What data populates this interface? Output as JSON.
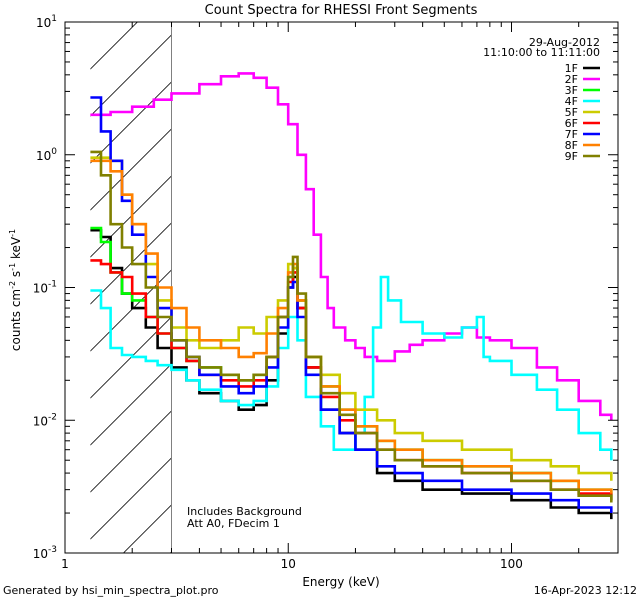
{
  "chart_data": {
    "type": "line",
    "title": "Count Spectra for RHESSI Front Segments",
    "xlabel": "Energy (keV)",
    "ylabel": "counts cm",
    "ylabel_parts": {
      "base": "counts cm",
      "exp1": "-2",
      "mid": " s",
      "exp2": "-1",
      "unit": " keV",
      "exp3": "-1"
    },
    "x_scale": "log",
    "y_scale": "log",
    "xlim": [
      1,
      300
    ],
    "ylim": [
      0.001,
      10
    ],
    "x_ticks": [
      {
        "value": 1,
        "label": "1"
      },
      {
        "value": 10,
        "label": "10"
      },
      {
        "value": 100,
        "label": "100"
      }
    ],
    "y_ticks": [
      {
        "value": 0.001,
        "base": "10",
        "exp": "-3"
      },
      {
        "value": 0.01,
        "base": "10",
        "exp": "-2"
      },
      {
        "value": 0.1,
        "base": "10",
        "exp": "-1"
      },
      {
        "value": 1,
        "base": "10",
        "exp": "0"
      },
      {
        "value": 10,
        "base": "10",
        "exp": "1"
      }
    ],
    "hatched_region_keV": [
      1.3,
      3.0
    ],
    "date": "29-Aug-2012",
    "time_range": "11:10:00 to 11:11:00",
    "annotations": [
      "Includes Background",
      "Att A0, FDecim 1"
    ],
    "footer_left": "Generated by hsi_min_spectra_plot.pro",
    "footer_right": "16-Apr-2023 12:12",
    "series": [
      {
        "name": "1F",
        "color": "#000000",
        "points": [
          [
            1.3,
            0.27
          ],
          [
            1.45,
            0.24
          ],
          [
            1.6,
            0.14
          ],
          [
            1.8,
            0.09
          ],
          [
            2.0,
            0.07
          ],
          [
            2.3,
            0.05
          ],
          [
            2.6,
            0.035
          ],
          [
            3.0,
            0.025
          ],
          [
            3.5,
            0.02
          ],
          [
            4.0,
            0.016
          ],
          [
            5.0,
            0.014
          ],
          [
            6.0,
            0.012
          ],
          [
            7.0,
            0.013
          ],
          [
            8.0,
            0.02
          ],
          [
            9.0,
            0.045
          ],
          [
            10.0,
            0.1
          ],
          [
            10.5,
            0.12
          ],
          [
            11.0,
            0.07
          ],
          [
            12.0,
            0.025
          ],
          [
            14.0,
            0.012
          ],
          [
            17.0,
            0.008
          ],
          [
            20.0,
            0.006
          ],
          [
            25.0,
            0.004
          ],
          [
            30.0,
            0.0035
          ],
          [
            40.0,
            0.003
          ],
          [
            60.0,
            0.0028
          ],
          [
            100.0,
            0.0025
          ],
          [
            150.0,
            0.0022
          ],
          [
            200.0,
            0.002
          ],
          [
            280.0,
            0.0018
          ]
        ]
      },
      {
        "name": "2F",
        "color": "#ff00ff",
        "points": [
          [
            1.3,
            2.0
          ],
          [
            1.6,
            2.1
          ],
          [
            2.0,
            2.3
          ],
          [
            2.5,
            2.6
          ],
          [
            3.0,
            2.9
          ],
          [
            4.0,
            3.4
          ],
          [
            5.0,
            3.9
          ],
          [
            6.0,
            4.1
          ],
          [
            7.0,
            3.8
          ],
          [
            8.0,
            3.2
          ],
          [
            9.0,
            2.4
          ],
          [
            10.0,
            1.7
          ],
          [
            11.0,
            1.0
          ],
          [
            12.0,
            0.55
          ],
          [
            13.0,
            0.25
          ],
          [
            14.0,
            0.12
          ],
          [
            15.0,
            0.07
          ],
          [
            16.0,
            0.05
          ],
          [
            18.0,
            0.04
          ],
          [
            20.0,
            0.035
          ],
          [
            22.0,
            0.03
          ],
          [
            25.0,
            0.028
          ],
          [
            30.0,
            0.033
          ],
          [
            35.0,
            0.037
          ],
          [
            40.0,
            0.04
          ],
          [
            50.0,
            0.045
          ],
          [
            60.0,
            0.05
          ],
          [
            70.0,
            0.042
          ],
          [
            80.0,
            0.04
          ],
          [
            100.0,
            0.035
          ],
          [
            130.0,
            0.025
          ],
          [
            160.0,
            0.02
          ],
          [
            200.0,
            0.014
          ],
          [
            250.0,
            0.011
          ],
          [
            280.0,
            0.01
          ]
        ]
      },
      {
        "name": "3F",
        "color": "#00ff00",
        "points": [
          [
            1.3,
            0.28
          ],
          [
            1.45,
            0.22
          ],
          [
            1.6,
            0.13
          ],
          [
            1.8,
            0.09
          ],
          [
            2.0,
            0.08
          ],
          [
            2.3,
            0.06
          ],
          [
            2.6,
            0.045
          ],
          [
            3.0,
            0.035
          ],
          [
            3.5,
            0.028
          ],
          [
            4.0,
            0.025
          ],
          [
            5.0,
            0.022
          ],
          [
            6.0,
            0.02
          ],
          [
            7.0,
            0.022
          ],
          [
            8.0,
            0.03
          ],
          [
            9.0,
            0.06
          ],
          [
            10.0,
            0.12
          ],
          [
            10.5,
            0.14
          ],
          [
            11.0,
            0.08
          ],
          [
            12.0,
            0.03
          ],
          [
            14.0,
            0.018
          ],
          [
            17.0,
            0.012
          ],
          [
            20.0,
            0.009
          ],
          [
            25.0,
            0.007
          ],
          [
            30.0,
            0.006
          ],
          [
            40.0,
            0.005
          ],
          [
            60.0,
            0.0045
          ],
          [
            100.0,
            0.004
          ],
          [
            150.0,
            0.0035
          ],
          [
            200.0,
            0.003
          ],
          [
            280.0,
            0.0025
          ]
        ]
      },
      {
        "name": "4F",
        "color": "#00ffff",
        "points": [
          [
            1.3,
            0.095
          ],
          [
            1.45,
            0.07
          ],
          [
            1.6,
            0.035
          ],
          [
            1.8,
            0.031
          ],
          [
            2.0,
            0.03
          ],
          [
            2.3,
            0.028
          ],
          [
            2.6,
            0.026
          ],
          [
            3.0,
            0.024
          ],
          [
            3.5,
            0.02
          ],
          [
            4.0,
            0.017
          ],
          [
            5.0,
            0.014
          ],
          [
            6.0,
            0.013
          ],
          [
            7.0,
            0.014
          ],
          [
            8.0,
            0.018
          ],
          [
            9.0,
            0.035
          ],
          [
            10.0,
            0.06
          ],
          [
            11.0,
            0.04
          ],
          [
            12.0,
            0.015
          ],
          [
            14.0,
            0.009
          ],
          [
            16.0,
            0.006
          ],
          [
            18.0,
            0.006
          ],
          [
            20.0,
            0.008
          ],
          [
            22.0,
            0.015
          ],
          [
            24.0,
            0.05
          ],
          [
            26.0,
            0.12
          ],
          [
            28.0,
            0.08
          ],
          [
            32.0,
            0.055
          ],
          [
            40.0,
            0.045
          ],
          [
            50.0,
            0.042
          ],
          [
            60.0,
            0.05
          ],
          [
            70.0,
            0.06
          ],
          [
            75.0,
            0.03
          ],
          [
            80.0,
            0.028
          ],
          [
            100.0,
            0.022
          ],
          [
            130.0,
            0.017
          ],
          [
            160.0,
            0.012
          ],
          [
            200.0,
            0.008
          ],
          [
            250.0,
            0.006
          ],
          [
            280.0,
            0.005
          ]
        ]
      },
      {
        "name": "5F",
        "color": "#cccc00",
        "points": [
          [
            1.3,
            0.95
          ],
          [
            1.6,
            0.9
          ],
          [
            1.8,
            0.5
          ],
          [
            2.0,
            0.3
          ],
          [
            2.3,
            0.15
          ],
          [
            2.6,
            0.08
          ],
          [
            3.0,
            0.05
          ],
          [
            3.5,
            0.04
          ],
          [
            4.0,
            0.035
          ],
          [
            5.0,
            0.04
          ],
          [
            6.0,
            0.05
          ],
          [
            7.0,
            0.045
          ],
          [
            8.0,
            0.06
          ],
          [
            9.0,
            0.08
          ],
          [
            10.0,
            0.15
          ],
          [
            10.5,
            0.14
          ],
          [
            11.0,
            0.08
          ],
          [
            12.0,
            0.03
          ],
          [
            14.0,
            0.022
          ],
          [
            17.0,
            0.016
          ],
          [
            20.0,
            0.012
          ],
          [
            25.0,
            0.01
          ],
          [
            30.0,
            0.008
          ],
          [
            40.0,
            0.007
          ],
          [
            60.0,
            0.006
          ],
          [
            100.0,
            0.005
          ],
          [
            150.0,
            0.0045
          ],
          [
            200.0,
            0.004
          ],
          [
            280.0,
            0.0035
          ]
        ]
      },
      {
        "name": "6F",
        "color": "#ff0000",
        "points": [
          [
            1.3,
            0.16
          ],
          [
            1.45,
            0.15
          ],
          [
            1.6,
            0.13
          ],
          [
            1.8,
            0.12
          ],
          [
            2.0,
            0.09
          ],
          [
            2.3,
            0.06
          ],
          [
            2.6,
            0.045
          ],
          [
            3.0,
            0.035
          ],
          [
            3.5,
            0.028
          ],
          [
            4.0,
            0.022
          ],
          [
            5.0,
            0.02
          ],
          [
            6.0,
            0.018
          ],
          [
            7.0,
            0.02
          ],
          [
            8.0,
            0.03
          ],
          [
            9.0,
            0.06
          ],
          [
            10.0,
            0.11
          ],
          [
            10.5,
            0.13
          ],
          [
            11.0,
            0.07
          ],
          [
            12.0,
            0.025
          ],
          [
            14.0,
            0.015
          ],
          [
            17.0,
            0.01
          ],
          [
            20.0,
            0.008
          ],
          [
            25.0,
            0.006
          ],
          [
            30.0,
            0.005
          ],
          [
            40.0,
            0.0045
          ],
          [
            60.0,
            0.004
          ],
          [
            100.0,
            0.0035
          ],
          [
            150.0,
            0.003
          ],
          [
            200.0,
            0.0028
          ],
          [
            280.0,
            0.0025
          ]
        ]
      },
      {
        "name": "7F",
        "color": "#0000ff",
        "points": [
          [
            1.3,
            2.7
          ],
          [
            1.45,
            1.5
          ],
          [
            1.6,
            0.9
          ],
          [
            1.8,
            0.45
          ],
          [
            2.0,
            0.25
          ],
          [
            2.3,
            0.12
          ],
          [
            2.6,
            0.07
          ],
          [
            3.0,
            0.04
          ],
          [
            3.5,
            0.03
          ],
          [
            4.0,
            0.022
          ],
          [
            5.0,
            0.018
          ],
          [
            6.0,
            0.016
          ],
          [
            7.0,
            0.018
          ],
          [
            8.0,
            0.025
          ],
          [
            9.0,
            0.05
          ],
          [
            10.0,
            0.1
          ],
          [
            10.5,
            0.11
          ],
          [
            11.0,
            0.06
          ],
          [
            12.0,
            0.022
          ],
          [
            14.0,
            0.012
          ],
          [
            17.0,
            0.008
          ],
          [
            20.0,
            0.006
          ],
          [
            25.0,
            0.0045
          ],
          [
            30.0,
            0.004
          ],
          [
            40.0,
            0.0035
          ],
          [
            60.0,
            0.003
          ],
          [
            100.0,
            0.0028
          ],
          [
            150.0,
            0.0025
          ],
          [
            200.0,
            0.0022
          ],
          [
            280.0,
            0.002
          ]
        ]
      },
      {
        "name": "8F",
        "color": "#ff8000",
        "points": [
          [
            1.3,
            0.9
          ],
          [
            1.6,
            0.75
          ],
          [
            1.8,
            0.5
          ],
          [
            2.0,
            0.3
          ],
          [
            2.3,
            0.18
          ],
          [
            2.6,
            0.1
          ],
          [
            3.0,
            0.07
          ],
          [
            3.5,
            0.05
          ],
          [
            4.0,
            0.04
          ],
          [
            5.0,
            0.035
          ],
          [
            6.0,
            0.03
          ],
          [
            7.0,
            0.032
          ],
          [
            8.0,
            0.045
          ],
          [
            9.0,
            0.07
          ],
          [
            10.0,
            0.13
          ],
          [
            10.5,
            0.15
          ],
          [
            11.0,
            0.08
          ],
          [
            12.0,
            0.03
          ],
          [
            14.0,
            0.018
          ],
          [
            17.0,
            0.012
          ],
          [
            20.0,
            0.009
          ],
          [
            25.0,
            0.007
          ],
          [
            30.0,
            0.006
          ],
          [
            40.0,
            0.005
          ],
          [
            60.0,
            0.0045
          ],
          [
            100.0,
            0.004
          ],
          [
            150.0,
            0.0035
          ],
          [
            200.0,
            0.003
          ],
          [
            280.0,
            0.0028
          ]
        ]
      },
      {
        "name": "9F",
        "color": "#808000",
        "points": [
          [
            1.3,
            1.05
          ],
          [
            1.45,
            0.7
          ],
          [
            1.6,
            0.3
          ],
          [
            1.8,
            0.2
          ],
          [
            2.0,
            0.15
          ],
          [
            2.3,
            0.1
          ],
          [
            2.6,
            0.06
          ],
          [
            3.0,
            0.04
          ],
          [
            3.5,
            0.03
          ],
          [
            4.0,
            0.025
          ],
          [
            5.0,
            0.022
          ],
          [
            6.0,
            0.02
          ],
          [
            7.0,
            0.022
          ],
          [
            8.0,
            0.03
          ],
          [
            9.0,
            0.06
          ],
          [
            10.0,
            0.12
          ],
          [
            10.5,
            0.17
          ],
          [
            11.0,
            0.09
          ],
          [
            12.0,
            0.03
          ],
          [
            14.0,
            0.016
          ],
          [
            17.0,
            0.011
          ],
          [
            20.0,
            0.008
          ],
          [
            25.0,
            0.006
          ],
          [
            30.0,
            0.005
          ],
          [
            40.0,
            0.0045
          ],
          [
            60.0,
            0.004
          ],
          [
            100.0,
            0.0035
          ],
          [
            150.0,
            0.003
          ],
          [
            200.0,
            0.0027
          ],
          [
            280.0,
            0.0024
          ]
        ]
      }
    ]
  }
}
